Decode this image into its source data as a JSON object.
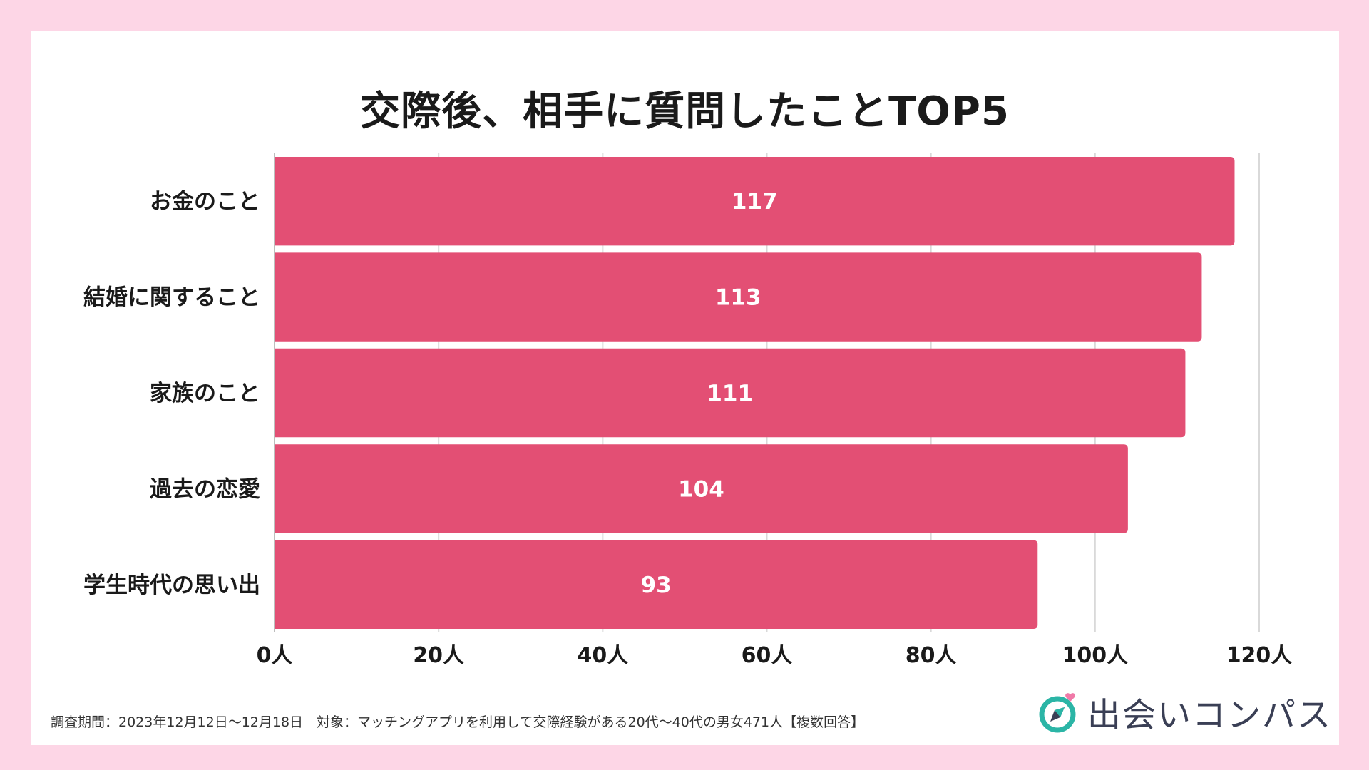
{
  "chart_data": {
    "type": "bar",
    "orientation": "horizontal",
    "title": "交際後、相手に質問したことTOP5",
    "categories": [
      "お金のこと",
      "結婚に関すること",
      "家族のこと",
      "過去の恋愛",
      "学生時代の思い出"
    ],
    "values": [
      117,
      113,
      111,
      104,
      93
    ],
    "xlim": [
      0,
      120
    ],
    "xticks": [
      "0人",
      "20人",
      "40人",
      "60人",
      "80人",
      "100人",
      "120人"
    ],
    "xtick_values": [
      0,
      20,
      40,
      60,
      80,
      100,
      120
    ],
    "grid": true,
    "bar_color": "#e34f74"
  },
  "footnote": "調査期間：2023年12月12日〜12月18日　対象：マッチングアプリを利用して交際経験がある20代〜40代の男女471人【複数回答】",
  "brand": {
    "name": "出会いコンパス",
    "icon": "compass-heart-icon",
    "colors": {
      "teal": "#2bb5a6",
      "navy": "#3a3f55",
      "pink": "#f07aa8"
    }
  }
}
